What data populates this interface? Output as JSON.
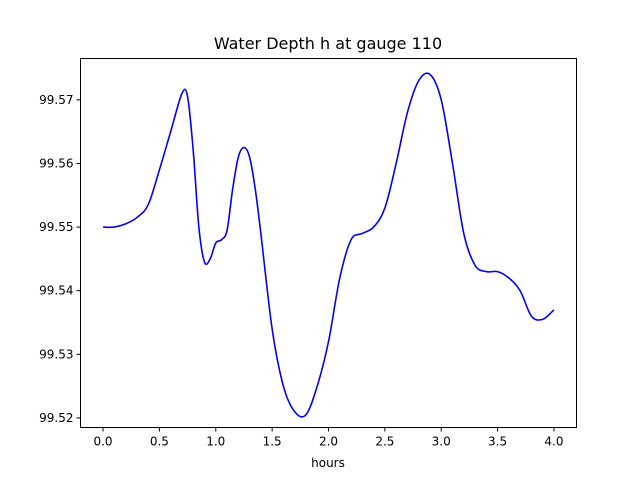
{
  "chart_data": {
    "type": "line",
    "title": "Water Depth h at gauge 110",
    "xlabel": "hours",
    "ylabel": "",
    "xlim": [
      -0.2,
      4.2
    ],
    "ylim": [
      99.5185,
      99.5765
    ],
    "grid": false,
    "x_ticks": [
      0.0,
      0.5,
      1.0,
      1.5,
      2.0,
      2.5,
      3.0,
      3.5,
      4.0
    ],
    "x_tick_labels": [
      "0.0",
      "0.5",
      "1.0",
      "1.5",
      "2.0",
      "2.5",
      "3.0",
      "3.5",
      "4.0"
    ],
    "y_ticks": [
      99.52,
      99.53,
      99.54,
      99.55,
      99.56,
      99.57
    ],
    "y_tick_labels": [
      "99.52",
      "99.53",
      "99.54",
      "99.55",
      "99.56",
      "99.57"
    ],
    "series": [
      {
        "color": "#0000ff",
        "x": [
          0.0,
          0.1,
          0.2,
          0.3,
          0.4,
          0.5,
          0.6,
          0.7,
          0.75,
          0.8,
          0.85,
          0.9,
          0.95,
          1.0,
          1.05,
          1.1,
          1.15,
          1.2,
          1.25,
          1.3,
          1.35,
          1.4,
          1.5,
          1.6,
          1.7,
          1.8,
          1.9,
          2.0,
          2.1,
          2.2,
          2.3,
          2.4,
          2.5,
          2.6,
          2.7,
          2.8,
          2.9,
          3.0,
          3.1,
          3.2,
          3.3,
          3.4,
          3.5,
          3.6,
          3.7,
          3.8,
          3.9,
          4.0
        ],
        "y": [
          99.55,
          99.55,
          99.5505,
          99.5515,
          99.5535,
          99.559,
          99.565,
          99.571,
          99.5705,
          99.562,
          99.55,
          99.5445,
          99.545,
          99.5475,
          99.548,
          99.5495,
          99.556,
          99.561,
          99.5625,
          99.561,
          99.556,
          99.549,
          99.534,
          99.525,
          99.521,
          99.5205,
          99.525,
          99.532,
          99.542,
          99.548,
          99.549,
          99.55,
          99.553,
          99.56,
          99.568,
          99.573,
          99.574,
          99.57,
          99.56,
          99.549,
          99.544,
          99.543,
          99.543,
          99.542,
          99.54,
          99.536,
          99.5355,
          99.537
        ]
      }
    ]
  }
}
